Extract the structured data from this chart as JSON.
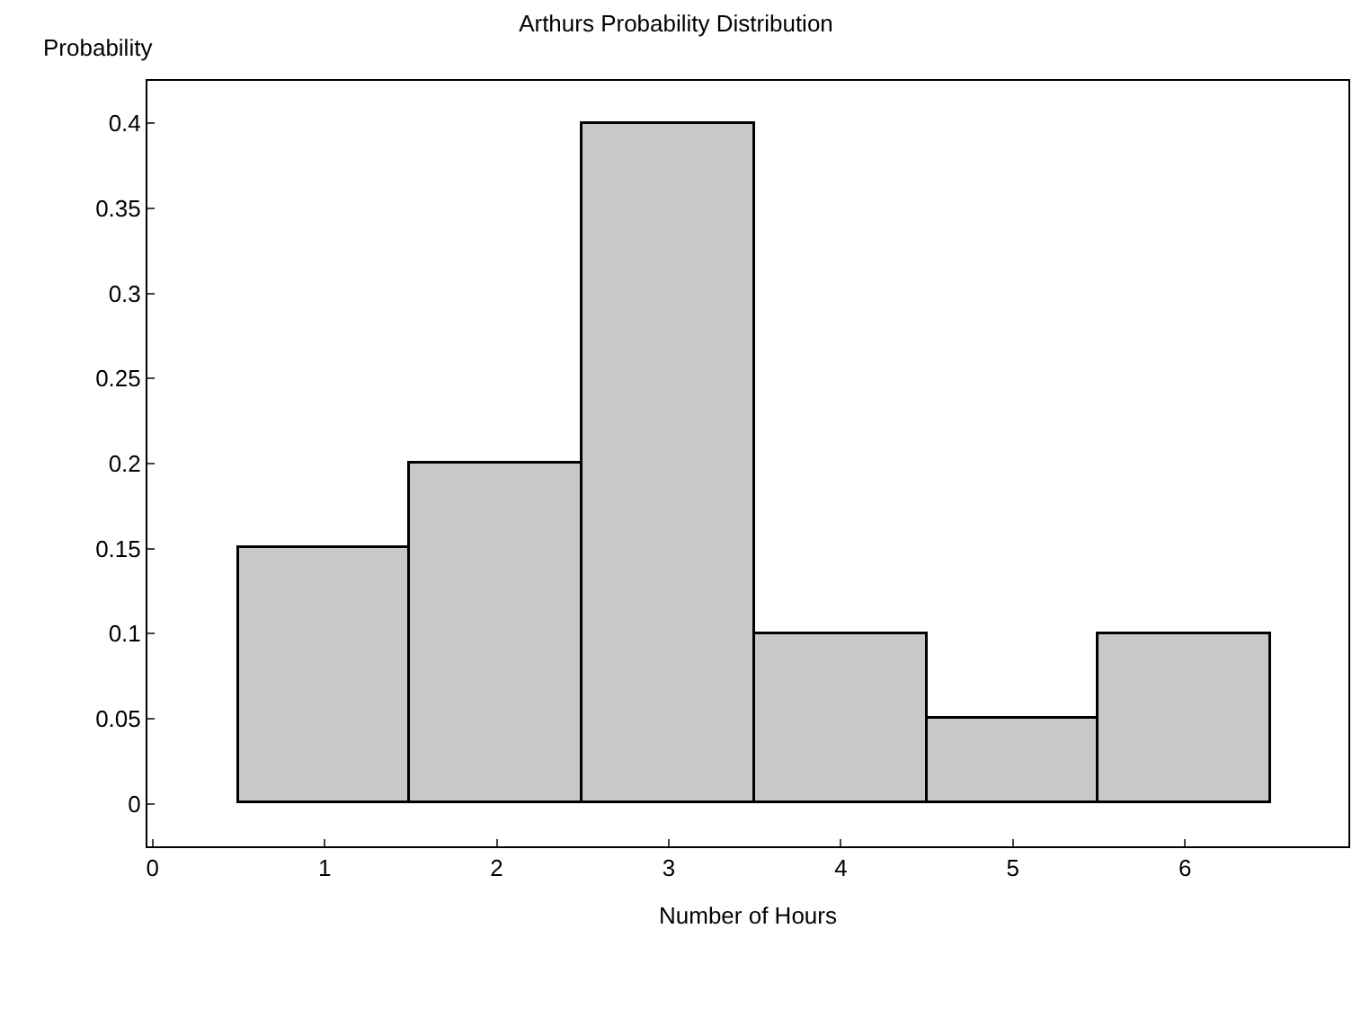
{
  "chart_data": {
    "type": "histogram",
    "title": "Arthurs Probability Distribution",
    "xlabel": "Number of Hours",
    "ylabel": "Probability",
    "bins": [
      0.5,
      1.5,
      2.5,
      3.5,
      4.5,
      5.5,
      6.5
    ],
    "values": [
      0.15,
      0.2,
      0.4,
      0.1,
      0.05,
      0.1
    ],
    "color": "#c8c8c8",
    "xlim": [
      -0.03,
      6.95
    ],
    "xticks": [
      0,
      1,
      2,
      3,
      4,
      5,
      6
    ],
    "ylim": [
      -0.025,
      0.425
    ],
    "yticks": [
      0,
      0.05,
      0.1,
      0.15,
      0.2,
      0.25,
      0.3,
      0.35,
      0.4
    ]
  }
}
